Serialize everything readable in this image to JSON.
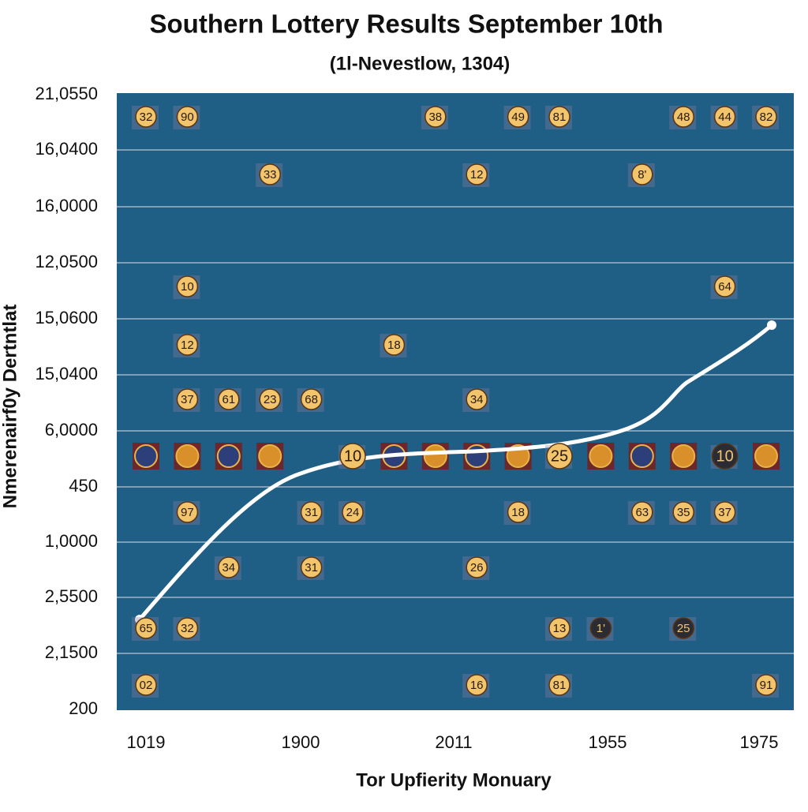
{
  "title": "Southern Lottery Results September 10th",
  "subtitle": "(1l-Nevestlow, 1304)",
  "y_title": "Nmerenairf0y Dertntlat",
  "x_title": "Tor Upfierity Monuary",
  "y_labels": [
    "21,0550",
    "16,0400",
    "16,0000",
    "12,0500",
    "15,0600",
    "15,0400",
    "6,0000",
    "450",
    "1,0000",
    "2,5500",
    "2,1500",
    "200"
  ],
  "x_labels": [
    "1019",
    "1900",
    "2011",
    "1955",
    "1975"
  ],
  "rows": [
    [
      "32",
      "90",
      null,
      null,
      null,
      null,
      null,
      "38",
      null,
      "49",
      "81",
      null,
      null,
      "48",
      "44",
      "82"
    ],
    [
      null,
      null,
      null,
      "33",
      null,
      null,
      null,
      null,
      "12",
      null,
      null,
      null,
      "8'",
      null,
      null,
      null
    ],
    [
      null,
      "10",
      null,
      null,
      null,
      null,
      null,
      null,
      null,
      null,
      null,
      null,
      null,
      null,
      "64",
      null
    ],
    [
      null,
      "12",
      null,
      null,
      null,
      null,
      "18",
      null,
      null,
      null,
      null,
      null,
      null,
      null,
      null,
      null
    ],
    [
      null,
      "37",
      "61",
      "23",
      "68",
      null,
      null,
      null,
      "34",
      null,
      null,
      null,
      null,
      null,
      null,
      null
    ],
    [
      null,
      null,
      null,
      null,
      null,
      "10",
      null,
      null,
      null,
      null,
      "25",
      null,
      null,
      null,
      "10",
      null
    ],
    [
      null,
      "97",
      null,
      null,
      "31",
      "24",
      null,
      null,
      null,
      "18",
      null,
      null,
      "63",
      "35",
      "37",
      null
    ],
    [
      null,
      null,
      "34",
      null,
      "31",
      null,
      null,
      null,
      "26",
      null,
      null,
      null,
      null,
      null,
      null,
      null
    ],
    [
      "65",
      "32",
      null,
      null,
      null,
      null,
      null,
      null,
      null,
      null,
      "13",
      "1'",
      null,
      "25",
      null,
      null
    ],
    [
      "02",
      null,
      null,
      null,
      null,
      null,
      null,
      null,
      "16",
      null,
      "81",
      null,
      null,
      null,
      null,
      "91"
    ]
  ]
}
